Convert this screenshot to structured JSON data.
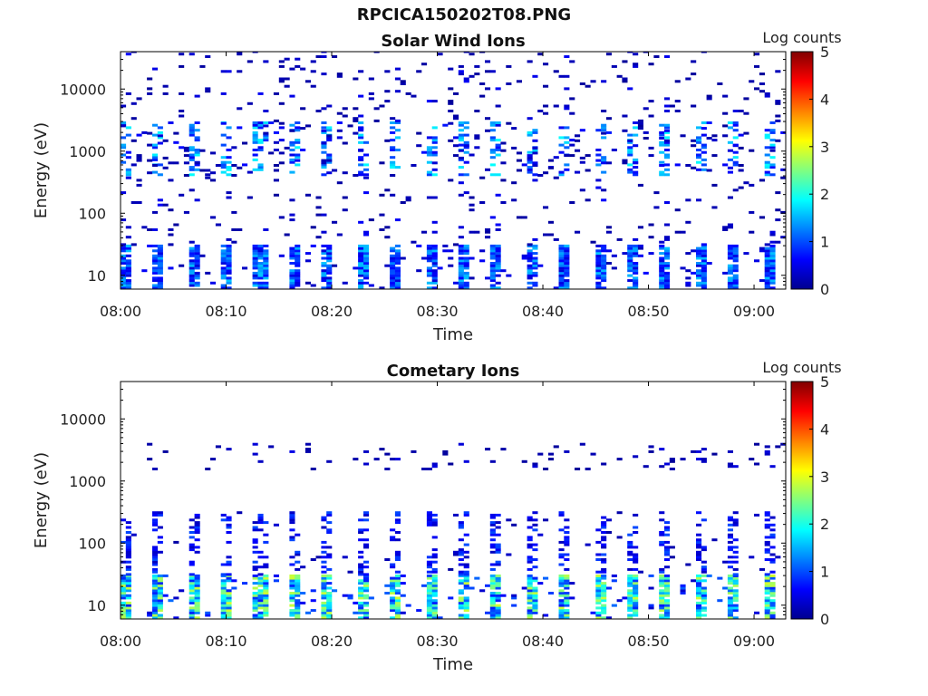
{
  "figure_title": "RPCICA150202T08.PNG",
  "colors": {
    "colormap": [
      "#00008f",
      "#0000ff",
      "#0080ff",
      "#00ffff",
      "#80ff80",
      "#ffff00",
      "#ff8000",
      "#ff0000",
      "#800000"
    ],
    "background": "#ffffff",
    "axis": "#000000"
  },
  "chart_data": [
    {
      "type": "heatmap",
      "title": "Solar Wind Ions",
      "xlabel": "Time",
      "ylabel": "Energy (eV)",
      "xlim": [
        "08:00",
        "09:03"
      ],
      "xticks": [
        "08:00",
        "08:10",
        "08:20",
        "08:30",
        "08:40",
        "08:50",
        "09:00"
      ],
      "yscale": "log",
      "ylim": [
        6,
        40000
      ],
      "yticks": [
        10,
        100,
        1000,
        10000
      ],
      "yticklabels": [
        "10",
        "100",
        "1000",
        "10000"
      ],
      "colorbar": {
        "label": "Log counts",
        "range": [
          0,
          5
        ],
        "ticks": [
          "0",
          "1",
          "2",
          "3",
          "4",
          "5"
        ]
      },
      "grid": false,
      "scan_period_min": 3.2,
      "bands": [
        {
          "e_min": 6,
          "e_max": 30,
          "log_counts_max": 1.6,
          "density": "high"
        },
        {
          "e_min": 400,
          "e_max": 3000,
          "log_counts_max": 1.9,
          "density": "medium"
        },
        {
          "e_min": 30,
          "e_max": 40000,
          "log_counts_max": 0.6,
          "density": "sparse"
        }
      ]
    },
    {
      "type": "heatmap",
      "title": "Cometary Ions",
      "xlabel": "Time",
      "ylabel": "Energy (eV)",
      "xlim": [
        "08:00",
        "09:03"
      ],
      "xticks": [
        "08:00",
        "08:10",
        "08:20",
        "08:30",
        "08:40",
        "08:50",
        "09:00"
      ],
      "yscale": "log",
      "ylim": [
        6,
        40000
      ],
      "yticks": [
        10,
        100,
        1000,
        10000
      ],
      "yticklabels": [
        "10",
        "100",
        "1000",
        "10000"
      ],
      "colorbar": {
        "label": "Log counts",
        "range": [
          0,
          5
        ],
        "ticks": [
          "0",
          "1",
          "2",
          "3",
          "4",
          "5"
        ]
      },
      "grid": false,
      "scan_period_min": 3.2,
      "bands": [
        {
          "e_min": 6,
          "e_max": 30,
          "log_counts_max": 2.9,
          "density": "high"
        },
        {
          "e_min": 30,
          "e_max": 300,
          "log_counts_max": 1.0,
          "density": "medium"
        },
        {
          "e_min": 1500,
          "e_max": 4000,
          "log_counts_max": 0.5,
          "density": "sparse"
        }
      ]
    }
  ]
}
